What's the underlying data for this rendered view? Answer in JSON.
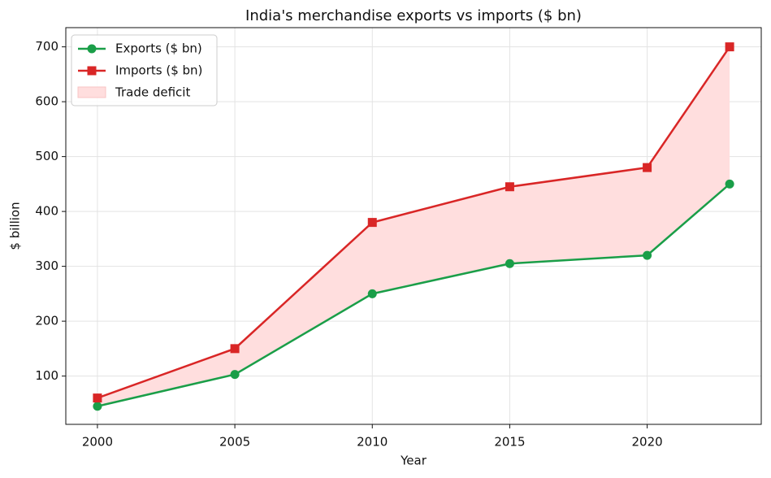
{
  "chart_data": {
    "type": "line",
    "title": "India's merchandise exports vs imports ($ bn)",
    "x_label": "Year",
    "y_label": "$ billion",
    "x": [
      2000,
      2005,
      2010,
      2015,
      2020,
      2023
    ],
    "series": [
      {
        "name": "Exports ($ bn)",
        "color": "#1a9e48",
        "marker": "circle",
        "values": [
          45,
          103,
          250,
          305,
          320,
          450
        ]
      },
      {
        "name": "Imports ($ bn)",
        "color": "#d92626",
        "marker": "square",
        "values": [
          60,
          150,
          380,
          445,
          480,
          700
        ]
      }
    ],
    "fill_between": {
      "name": "Trade deficit",
      "color": "#ffdede",
      "edge_color": "#f8c4c4"
    },
    "xlim": [
      1998.85,
      2024.15
    ],
    "xticks": [
      2000,
      2005,
      2010,
      2015,
      2020
    ],
    "ylim": [
      12,
      735
    ],
    "yticks": [
      100,
      200,
      300,
      400,
      500,
      600,
      700
    ],
    "grid": true,
    "legend": "upper-left"
  }
}
